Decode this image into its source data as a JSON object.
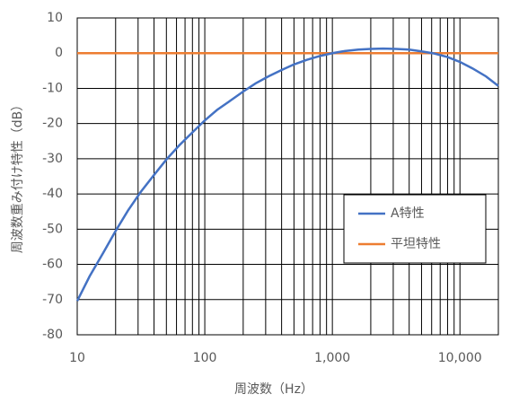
{
  "chart_data": {
    "type": "line",
    "xlabel": "周波数（Hz）",
    "ylabel": "周波数重み付け特性（dB）",
    "xscale": "log",
    "x": [
      10,
      12.5,
      16,
      20,
      25,
      31.5,
      40,
      50,
      63,
      80,
      100,
      125,
      160,
      200,
      250,
      315,
      400,
      500,
      630,
      800,
      1000,
      1250,
      1600,
      2000,
      2500,
      3150,
      4000,
      5000,
      6300,
      8000,
      10000,
      12500,
      16000,
      20000
    ],
    "series": [
      {
        "name": "A特性",
        "color": "#4472c4",
        "values": [
          -70.4,
          -63.4,
          -56.7,
          -50.5,
          -44.7,
          -39.4,
          -34.6,
          -30.2,
          -26.2,
          -22.5,
          -19.1,
          -16.1,
          -13.4,
          -10.9,
          -8.6,
          -6.6,
          -4.8,
          -3.2,
          -1.9,
          -0.8,
          0,
          0.6,
          1.0,
          1.2,
          1.3,
          1.2,
          1.0,
          0.5,
          -0.1,
          -1.1,
          -2.5,
          -4.3,
          -6.6,
          -9.3
        ]
      },
      {
        "name": "平坦特性",
        "color": "#ed7d31",
        "values": [
          0,
          0,
          0,
          0,
          0,
          0,
          0,
          0,
          0,
          0,
          0,
          0,
          0,
          0,
          0,
          0,
          0,
          0,
          0,
          0,
          0,
          0,
          0,
          0,
          0,
          0,
          0,
          0,
          0,
          0,
          0,
          0,
          0,
          0
        ]
      }
    ],
    "xlim": [
      10,
      20000
    ],
    "xticks": [
      10,
      100,
      {
        "value": 1000,
        "label": "1,000"
      },
      {
        "value": 10000,
        "label": "10,000"
      }
    ],
    "xgrid": [
      10,
      20,
      30,
      40,
      50,
      60,
      70,
      80,
      90,
      100,
      200,
      300,
      400,
      500,
      600,
      700,
      800,
      900,
      1000,
      2000,
      3000,
      4000,
      5000,
      6000,
      7000,
      8000,
      9000,
      10000,
      20000
    ],
    "ylim": [
      -80,
      10
    ],
    "yticks": [
      -80,
      -70,
      -60,
      -50,
      -40,
      -30,
      -20,
      -10,
      0,
      10
    ],
    "grid": true,
    "legend": "lower right"
  }
}
